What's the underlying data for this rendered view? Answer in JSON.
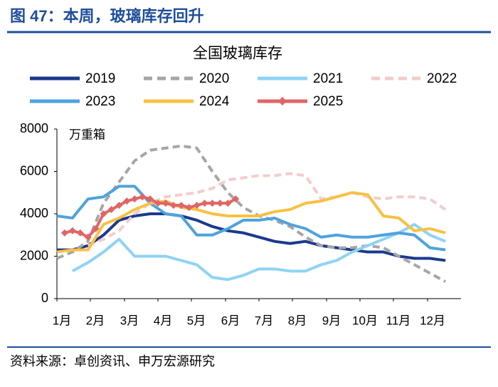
{
  "header": "图 47：本周，玻璃库存回升",
  "source": "资料来源：卓创资讯、申万宏源研究",
  "chart_data": {
    "type": "line",
    "title": "全国玻璃库存",
    "y_label": "万重箱",
    "xlim": [
      0,
      52
    ],
    "xticks": [
      {
        "value": 0,
        "label": "1月"
      },
      {
        "value": 4.3,
        "label": "2月"
      },
      {
        "value": 8.7,
        "label": "3月"
      },
      {
        "value": 13,
        "label": "4月"
      },
      {
        "value": 17.3,
        "label": "5月"
      },
      {
        "value": 21.7,
        "label": "6月"
      },
      {
        "value": 26,
        "label": "7月"
      },
      {
        "value": 30.3,
        "label": "8月"
      },
      {
        "value": 34.7,
        "label": "9月"
      },
      {
        "value": 39,
        "label": "10月"
      },
      {
        "value": 43.3,
        "label": "11月"
      },
      {
        "value": 47.7,
        "label": "12月"
      }
    ],
    "ylim": [
      0,
      8000
    ],
    "yticks": [
      0,
      2000,
      4000,
      6000,
      8000
    ],
    "grid": false,
    "x": [
      0,
      2,
      4,
      6,
      8,
      10,
      12,
      14,
      16,
      18,
      20,
      22,
      24,
      26,
      28,
      30,
      32,
      34,
      36,
      38,
      40,
      42,
      44,
      46,
      48,
      50
    ],
    "series": [
      {
        "name": "2019",
        "color": "#1b3a8c",
        "dash": false,
        "values": [
          2300,
          2300,
          2500,
          3000,
          3700,
          3900,
          4000,
          4000,
          3900,
          3700,
          3400,
          3200,
          3100,
          2900,
          2700,
          2600,
          2700,
          2500,
          2400,
          2300,
          2200,
          2200,
          2000,
          1900,
          1900,
          1800
        ]
      },
      {
        "name": "2020",
        "color": "#a6a6a6",
        "dash": true,
        "values": [
          1900,
          2200,
          2700,
          4500,
          5500,
          6500,
          7000,
          7100,
          7200,
          7100,
          6000,
          5000,
          4300,
          3900,
          3700,
          3400,
          2900,
          2500,
          2400,
          2400,
          2500,
          2400,
          2000,
          1600,
          1200,
          800
        ]
      },
      {
        "name": "2021",
        "color": "#8fd3f5",
        "dash": false,
        "values": [
          null,
          1300,
          1700,
          2200,
          2800,
          2000,
          2000,
          2000,
          1800,
          1600,
          1000,
          900,
          1100,
          1400,
          1400,
          1300,
          1300,
          1600,
          1800,
          2200,
          2500,
          2800,
          3100,
          3500,
          3000,
          2700
        ]
      },
      {
        "name": "2022",
        "color": "#f4cccc",
        "dash": true,
        "values": [
          null,
          null,
          2500,
          2800,
          3200,
          4000,
          4500,
          4800,
          4900,
          5000,
          5200,
          5600,
          5700,
          5800,
          5800,
          5900,
          5800,
          4700,
          4800,
          5000,
          4800,
          4700,
          4800,
          4800,
          4700,
          4200
        ]
      },
      {
        "name": "2023",
        "color": "#4ea3dc",
        "dash": false,
        "values": [
          3900,
          3800,
          4700,
          4800,
          5300,
          5300,
          4500,
          4000,
          3900,
          3000,
          3000,
          3300,
          3700,
          3700,
          3800,
          3500,
          3300,
          2900,
          3000,
          2900,
          2900,
          3000,
          3100,
          3000,
          2400,
          2300
        ]
      },
      {
        "name": "2024",
        "color": "#f7c142",
        "dash": false,
        "values": [
          2200,
          2300,
          2300,
          3500,
          3800,
          4200,
          4500,
          4600,
          4300,
          4200,
          4000,
          3900,
          3900,
          3900,
          4100,
          4200,
          4500,
          4600,
          4800,
          5000,
          4900,
          3900,
          3800,
          3200,
          3300,
          3100
        ]
      },
      {
        "name": "2025",
        "color": "#e06666",
        "dash": false,
        "marker": "diamond",
        "x": [
          1,
          2,
          3,
          4,
          5,
          6,
          7,
          8,
          9,
          10,
          11,
          12,
          13,
          14,
          15,
          16,
          17,
          18,
          19,
          20,
          21,
          22,
          23
        ],
        "values": [
          3100,
          3200,
          3100,
          2900,
          3300,
          4000,
          4200,
          4400,
          4600,
          4700,
          4800,
          4700,
          4500,
          4500,
          4400,
          4400,
          4300,
          4400,
          4500,
          4500,
          4500,
          4500,
          4700
        ]
      }
    ]
  }
}
